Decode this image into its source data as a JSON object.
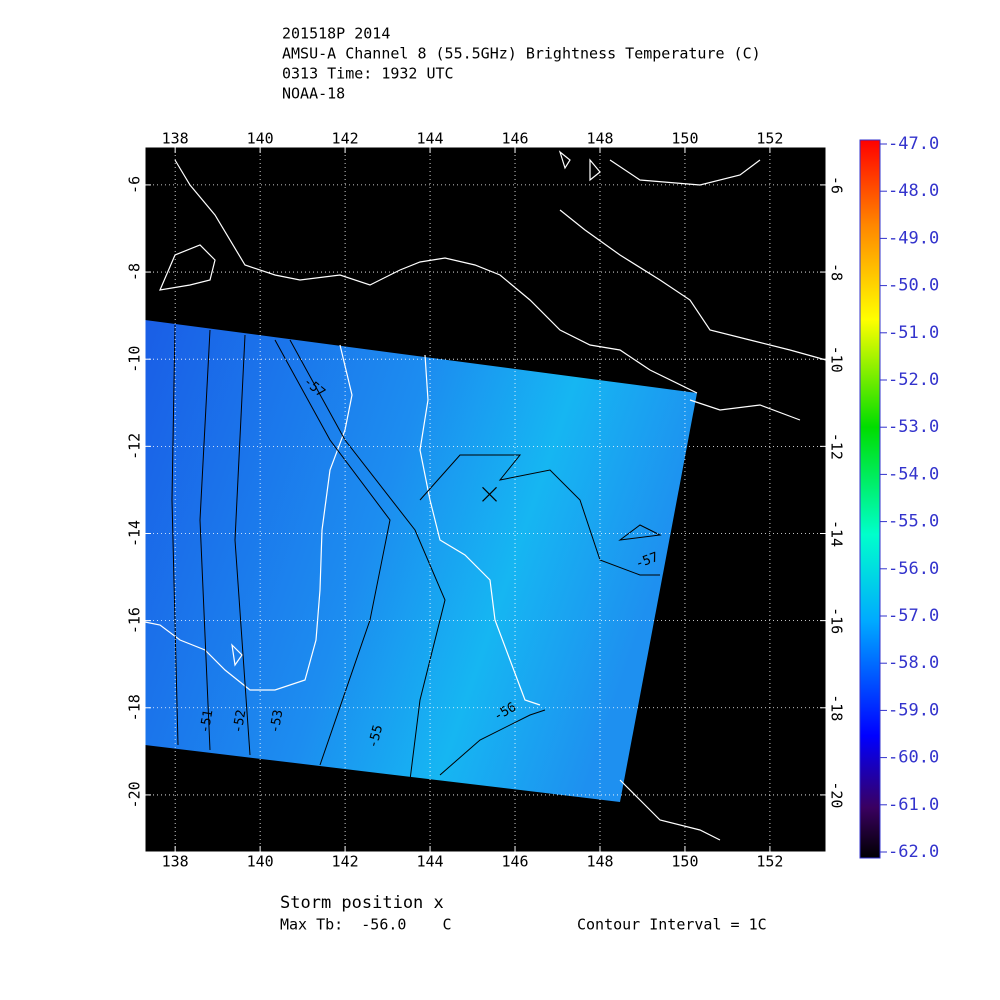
{
  "header": {
    "lines": [
      "201518P 2014",
      "AMSU-A Channel 8 (55.5GHz) Brightness Temperature (C)",
      "0313 Time: 1932 UTC",
      "NOAA-18"
    ]
  },
  "map": {
    "xlim": [
      137.29,
      153.32
    ],
    "ylim": [
      -21.31,
      -5.13
    ],
    "xticks": [
      138,
      140,
      142,
      144,
      146,
      148,
      150,
      152
    ],
    "yticks": [
      -6,
      -8,
      -10,
      -12,
      -14,
      -16,
      -18,
      -20
    ],
    "storm_position": [
      145.4,
      -13.1
    ],
    "contour_labels": [
      -51,
      -52,
      -53,
      -55,
      -56,
      -57,
      -57
    ]
  },
  "colorbar": {
    "lim": [
      -62,
      -47
    ],
    "ticks": [
      {
        "value": -47,
        "label": "-47.0"
      },
      {
        "value": -48,
        "label": "-48.0"
      },
      {
        "value": -49,
        "label": "-49.0"
      },
      {
        "value": -50,
        "label": "-50.0"
      },
      {
        "value": -51,
        "label": "-51.0"
      },
      {
        "value": -52,
        "label": "-52.0"
      },
      {
        "value": -53,
        "label": "-53.0"
      },
      {
        "value": -54,
        "label": "-54.0"
      },
      {
        "value": -55,
        "label": "-55.0"
      },
      {
        "value": -56,
        "label": "-56.0"
      },
      {
        "value": -57,
        "label": "-57.0"
      },
      {
        "value": -58,
        "label": "-58.0"
      },
      {
        "value": -59,
        "label": "-59.0"
      },
      {
        "value": -60,
        "label": "-60.0"
      },
      {
        "value": -61,
        "label": "-61.0"
      },
      {
        "value": -62,
        "label": "-62.0"
      }
    ]
  },
  "footer": {
    "storm_label": "Storm position x",
    "max_tb": "Max Tb:  -56.0    C",
    "contour_interval": "Contour Interval = 1C"
  }
}
